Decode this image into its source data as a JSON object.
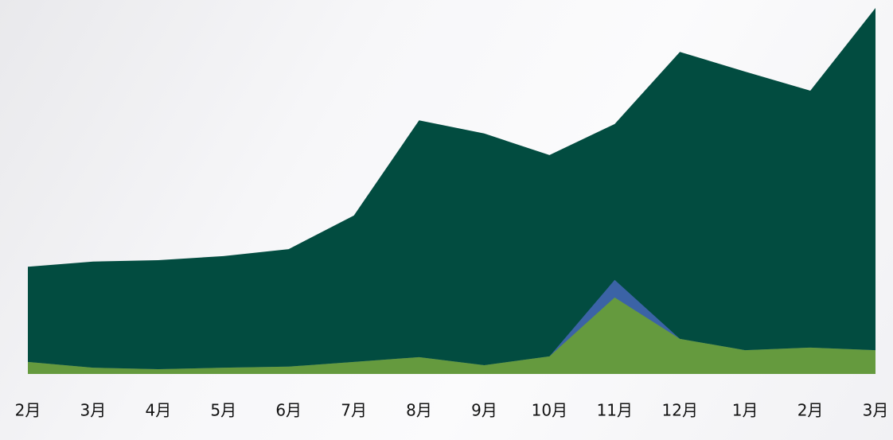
{
  "chart_data": {
    "type": "area",
    "categories": [
      "2月",
      "3月",
      "4月",
      "5月",
      "6月",
      "7月",
      "8月",
      "9月",
      "10月",
      "11月",
      "12月",
      "1月",
      "2月",
      "3月"
    ],
    "series": [
      {
        "color": "#024c40",
        "values": [
          29.3,
          30.7,
          31.1,
          32.2,
          34.1,
          43.3,
          69.3,
          65.7,
          59.8,
          68.3,
          88,
          82.6,
          77.4,
          100
        ]
      },
      {
        "color": "#3b63a6",
        "values": [
          3.3,
          1.7,
          1.3,
          1.7,
          2,
          3.3,
          4.6,
          2.4,
          4.8,
          25.7,
          9.6,
          6.5,
          7.2,
          6.5
        ]
      },
      {
        "color": "#659a3e",
        "values": [
          3.3,
          1.7,
          1.3,
          1.7,
          2,
          3.3,
          4.6,
          2.4,
          4.8,
          20.9,
          9.6,
          6.5,
          7.2,
          6.5
        ]
      }
    ],
    "ylim": [
      0,
      100
    ]
  }
}
